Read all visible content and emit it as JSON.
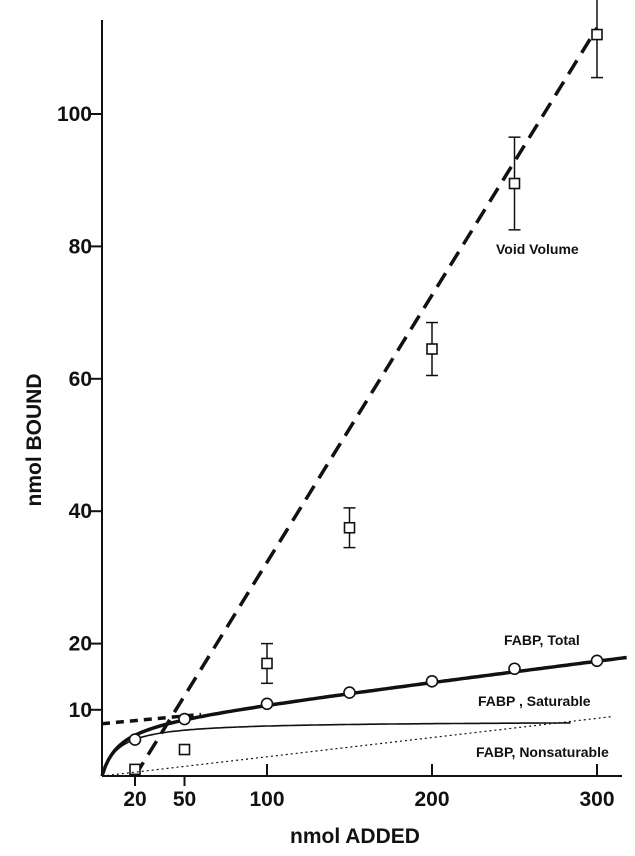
{
  "chart_data": {
    "type": "line",
    "title": "",
    "xlabel": "nmol ADDED",
    "ylabel": "nmol BOUND",
    "xlim": [
      0,
      320
    ],
    "ylim": [
      0,
      115
    ],
    "xticks": [
      20,
      50,
      100,
      200,
      300
    ],
    "yticks": [
      10,
      20,
      40,
      60,
      80,
      100
    ],
    "grid": false,
    "series": [
      {
        "name": "Void Volume",
        "line_style": "dashed",
        "marker": "square",
        "color": "#111111",
        "line": {
          "x": [
            20,
            300
          ],
          "y": [
            0,
            113
          ]
        },
        "points": [
          {
            "x": 20,
            "y": 1,
            "err": 0
          },
          {
            "x": 50,
            "y": 4,
            "err": 0
          },
          {
            "x": 100,
            "y": 17,
            "err": 3
          },
          {
            "x": 150,
            "y": 37.5,
            "err": 3
          },
          {
            "x": 200,
            "y": 64.5,
            "err": 4
          },
          {
            "x": 250,
            "y": 89.5,
            "err": 7
          },
          {
            "x": 300,
            "y": 112,
            "err": 6.5
          }
        ]
      },
      {
        "name": "FABP, Total",
        "line_style": "solid-thick",
        "marker": "circle",
        "color": "#111111",
        "points": [
          {
            "x": 20,
            "y": 5.5
          },
          {
            "x": 50,
            "y": 8.6
          },
          {
            "x": 100,
            "y": 10.9
          },
          {
            "x": 150,
            "y": 12.6
          },
          {
            "x": 200,
            "y": 14.3
          },
          {
            "x": 250,
            "y": 16.2
          },
          {
            "x": 300,
            "y": 17.4
          }
        ]
      },
      {
        "name": "FABP , Saturable",
        "line_style": "solid-thin",
        "marker": "none",
        "color": "#111111"
      },
      {
        "name": "FABP, Nonsaturable",
        "line_style": "dotted",
        "marker": "none",
        "color": "#111111",
        "line": {
          "x": [
            0,
            310
          ],
          "y": [
            0,
            9
          ]
        }
      }
    ]
  }
}
